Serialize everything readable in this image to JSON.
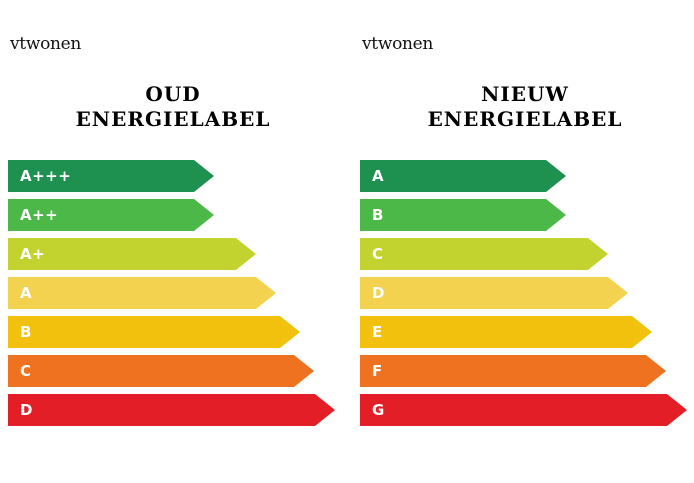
{
  "left": {
    "brand": "vtwonen",
    "title_line1": "OUD",
    "title_line2": "ENERGIELABEL",
    "labels": [
      {
        "label": "A+++",
        "color": "#1e9150"
      },
      {
        "label": "A++",
        "color": "#4cb847"
      },
      {
        "label": "A+",
        "color": "#c2d22f"
      },
      {
        "label": "A",
        "color": "#f2d24e"
      },
      {
        "label": "B",
        "color": "#f2c10e"
      },
      {
        "label": "C",
        "color": "#ef7220"
      },
      {
        "label": "D",
        "color": "#e31e26"
      }
    ]
  },
  "right": {
    "brand": "vtwonen",
    "title_line1": "NIEUW",
    "title_line2": "ENERGIELABEL",
    "labels": [
      {
        "label": "A",
        "color": "#1e9150"
      },
      {
        "label": "B",
        "color": "#4cb847"
      },
      {
        "label": "C",
        "color": "#c2d22f"
      },
      {
        "label": "D",
        "color": "#f2d24e"
      },
      {
        "label": "E",
        "color": "#f2c10e"
      },
      {
        "label": "F",
        "color": "#ef7220"
      },
      {
        "label": "G",
        "color": "#e31e26"
      }
    ]
  }
}
